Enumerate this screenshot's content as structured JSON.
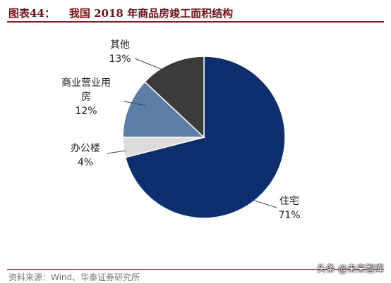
{
  "header": {
    "figure_label": "图表44：",
    "title": "我国 2018 年商品房竣工面积结构"
  },
  "footer": {
    "source": "资料来源：Wind、华泰证券研究所",
    "watermark": "头条 @未来智库"
  },
  "chart_data": {
    "type": "pie",
    "title": "我国 2018 年商品房竣工面积结构",
    "slices": [
      {
        "name": "住宅",
        "name_lines": [
          "住宅"
        ],
        "label": "71%",
        "value": 71,
        "color": "#0d2f6e"
      },
      {
        "name": "办公楼",
        "name_lines": [
          "办公楼"
        ],
        "label": "4%",
        "value": 4,
        "color": "#dcdcdc"
      },
      {
        "name": "商业营业用房",
        "name_lines": [
          "商业营业用",
          "房"
        ],
        "label": "12%",
        "value": 12,
        "color": "#5a7ea6"
      },
      {
        "name": "其他",
        "name_lines": [
          "其他"
        ],
        "label": "13%",
        "value": 13,
        "color": "#3b3b3b"
      }
    ],
    "start_angle_deg": 0,
    "direction": "clockwise",
    "legend": "none"
  }
}
